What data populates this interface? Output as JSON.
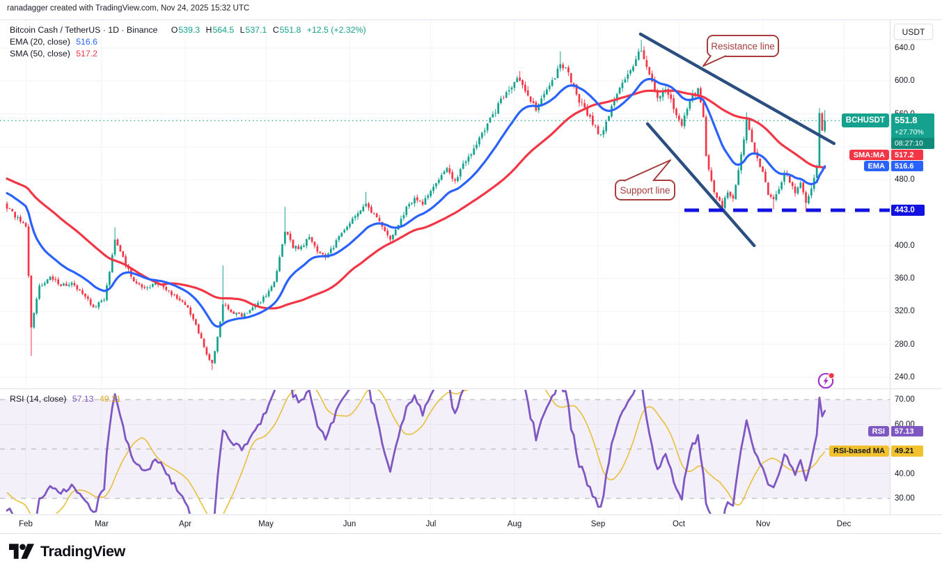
{
  "attribution": "ranadagger created with TradingView.com, Nov 24, 2025 15:32 UTC",
  "legend": {
    "title": "Bitcoin Cash / TetherUS · 1D · Binance",
    "o_label": "O",
    "o_value": "539.3",
    "h_label": "H",
    "h_value": "564.5",
    "l_label": "L",
    "l_value": "537.1",
    "c_label": "C",
    "c_value": "551.8",
    "change": "+12.5 (+2.32%)",
    "ema_label": "EMA (20, close)",
    "ema_value": "516.6",
    "sma_label": "SMA (50, close)",
    "sma_value": "517.2"
  },
  "rsi": {
    "legend_label": "RSI (14, close)",
    "value": "57.13",
    "ma_value": "49.21",
    "badge_label": "RSI",
    "ma_badge_label": "RSI-based MA"
  },
  "axis": {
    "currency": "USDT",
    "price_labels": [
      {
        "text": "640.0",
        "price": 640
      },
      {
        "text": "600.0",
        "price": 600
      },
      {
        "text": "560.0",
        "price": 560
      },
      {
        "text": "480.0",
        "price": 480
      },
      {
        "text": "400.0",
        "price": 400
      },
      {
        "text": "360.0",
        "price": 360
      },
      {
        "text": "320.0",
        "price": 320
      },
      {
        "text": "280.0",
        "price": 280
      },
      {
        "text": "240.0",
        "price": 240
      }
    ],
    "rsi_labels": [
      {
        "text": "70.00",
        "value": 70
      },
      {
        "text": "60.00",
        "value": 60
      },
      {
        "text": "40.00",
        "value": 40
      },
      {
        "text": "30.00",
        "value": 30
      }
    ]
  },
  "badges": {
    "symbol": {
      "label": "BCHUSDT",
      "price": "551.8",
      "change_pct": "+27.70%",
      "countdown": "08:27:10"
    },
    "sma": {
      "label": "SMA:MA",
      "value": "517.2"
    },
    "ema": {
      "label": "EMA",
      "value": "516.6"
    },
    "level": {
      "value": "443.0"
    },
    "rsi": {
      "label": "RSI",
      "value": "57.13"
    },
    "rsi_ma": {
      "label": "RSI-based MA",
      "value": "49.21"
    }
  },
  "annotations": {
    "resistance_label": "Resistance line",
    "support_label": "Support line"
  },
  "logo_text": "TradingView",
  "colors": {
    "up": "#14a18d",
    "down": "#f23645",
    "ema": "#2962ff",
    "sma": "#f23645",
    "rsi_line": "#7e57c2",
    "rsi_ma_line": "#e8bf3c",
    "trend": "#2b4e80",
    "level_blue": "#1212e0",
    "callout": "#a63d3d",
    "badge_teal": "#14a18d",
    "badge_red": "#f23645",
    "badge_blue": "#2962ff",
    "badge_purple": "#7e57c2",
    "badge_yellow": "#f2c12e",
    "grid": "#f2f3f7",
    "text": "#131722"
  },
  "chart_data": {
    "type": "candlestick",
    "symbol": "BCHUSDT",
    "exchange": "Binance",
    "timeframe": "1D",
    "title": "Bitcoin Cash / TetherUS",
    "current_price": 551.8,
    "ohlc_last": {
      "open": 539.3,
      "high": 564.5,
      "low": 537.1,
      "close": 551.8,
      "change": 12.5,
      "change_pct": 2.32
    },
    "indicators": {
      "ema20": 516.6,
      "sma50": 517.2,
      "rsi14": 57.13,
      "rsi_based_ma": 49.21
    },
    "support_level": 443.0,
    "y_axis": {
      "min": 230,
      "max": 662,
      "tick_step": 40,
      "ticks": [
        640,
        600,
        560,
        520,
        480,
        440,
        400,
        360,
        320,
        280,
        240
      ]
    },
    "rsi_axis": {
      "ticks": [
        70,
        60,
        50,
        40,
        30
      ],
      "band": [
        30,
        70
      ],
      "dashed_levels": [
        70,
        50,
        30
      ]
    },
    "month_labels": [
      "Feb",
      "Mar",
      "Apr",
      "May",
      "Jun",
      "Jul",
      "Aug",
      "Sep",
      "Oct",
      "Nov",
      "Dec"
    ],
    "month_start_days": [
      7,
      35,
      66,
      96,
      127,
      157,
      188,
      219,
      249,
      280,
      310
    ],
    "days_total": 304,
    "price_anchors": [
      [
        0,
        447
      ],
      [
        2,
        440
      ],
      [
        5,
        430
      ],
      [
        7,
        424
      ],
      [
        9,
        302
      ],
      [
        12,
        350
      ],
      [
        16,
        362
      ],
      [
        20,
        352
      ],
      [
        24,
        354
      ],
      [
        28,
        342
      ],
      [
        32,
        325
      ],
      [
        36,
        334
      ],
      [
        40,
        405
      ],
      [
        43,
        385
      ],
      [
        47,
        355
      ],
      [
        51,
        348
      ],
      [
        55,
        354
      ],
      [
        59,
        347
      ],
      [
        63,
        336
      ],
      [
        67,
        324
      ],
      [
        71,
        295
      ],
      [
        74,
        268
      ],
      [
        76,
        257
      ],
      [
        78,
        288
      ],
      [
        80,
        330
      ],
      [
        83,
        320
      ],
      [
        87,
        314
      ],
      [
        91,
        324
      ],
      [
        95,
        336
      ],
      [
        99,
        355
      ],
      [
        103,
        418
      ],
      [
        106,
        399
      ],
      [
        109,
        397
      ],
      [
        112,
        411
      ],
      [
        115,
        393
      ],
      [
        118,
        385
      ],
      [
        121,
        399
      ],
      [
        124,
        415
      ],
      [
        127,
        427
      ],
      [
        130,
        441
      ],
      [
        133,
        452
      ],
      [
        136,
        437
      ],
      [
        139,
        423
      ],
      [
        142,
        409
      ],
      [
        145,
        427
      ],
      [
        148,
        445
      ],
      [
        151,
        459
      ],
      [
        154,
        451
      ],
      [
        157,
        467
      ],
      [
        160,
        481
      ],
      [
        163,
        493
      ],
      [
        166,
        479
      ],
      [
        169,
        497
      ],
      [
        172,
        513
      ],
      [
        175,
        529
      ],
      [
        178,
        547
      ],
      [
        181,
        564
      ],
      [
        184,
        581
      ],
      [
        187,
        595
      ],
      [
        190,
        603
      ],
      [
        193,
        584
      ],
      [
        196,
        565
      ],
      [
        199,
        581
      ],
      [
        202,
        599
      ],
      [
        205,
        621
      ],
      [
        208,
        609
      ],
      [
        211,
        583
      ],
      [
        214,
        565
      ],
      [
        217,
        549
      ],
      [
        220,
        533
      ],
      [
        223,
        559
      ],
      [
        226,
        587
      ],
      [
        229,
        605
      ],
      [
        232,
        621
      ],
      [
        235,
        638
      ],
      [
        238,
        611
      ],
      [
        241,
        577
      ],
      [
        244,
        593
      ],
      [
        247,
        569
      ],
      [
        250,
        547
      ],
      [
        253,
        577
      ],
      [
        256,
        589
      ],
      [
        258,
        559
      ],
      [
        259,
        507
      ],
      [
        261,
        477
      ],
      [
        263,
        457
      ],
      [
        265,
        447
      ],
      [
        267,
        467
      ],
      [
        269,
        457
      ],
      [
        271,
        491
      ],
      [
        273,
        529
      ],
      [
        274,
        551
      ],
      [
        276,
        527
      ],
      [
        278,
        504
      ],
      [
        280,
        487
      ],
      [
        282,
        464
      ],
      [
        284,
        454
      ],
      [
        286,
        469
      ],
      [
        288,
        489
      ],
      [
        290,
        477
      ],
      [
        292,
        465
      ],
      [
        294,
        477
      ],
      [
        296,
        451
      ],
      [
        298,
        469
      ],
      [
        300,
        494
      ],
      [
        301,
        560
      ],
      [
        302,
        540
      ],
      [
        303,
        551.8
      ]
    ],
    "wick_highs": {
      "40": 422,
      "80": 376,
      "103": 447,
      "133": 465,
      "190": 612,
      "205": 636,
      "235": 650,
      "274": 562,
      "301": 567
    },
    "wick_lows": {
      "9": 266,
      "76": 249,
      "265": 443,
      "284": 444,
      "296": 441
    },
    "trend_lines": [
      {
        "name": "resistance",
        "points": [
          [
            234.7,
            657
          ],
          [
            306.4,
            524
          ]
        ]
      },
      {
        "name": "support",
        "points": [
          [
            237.3,
            548
          ],
          [
            276.8,
            400
          ]
        ]
      }
    ],
    "support_dash_start_day": 251
  }
}
